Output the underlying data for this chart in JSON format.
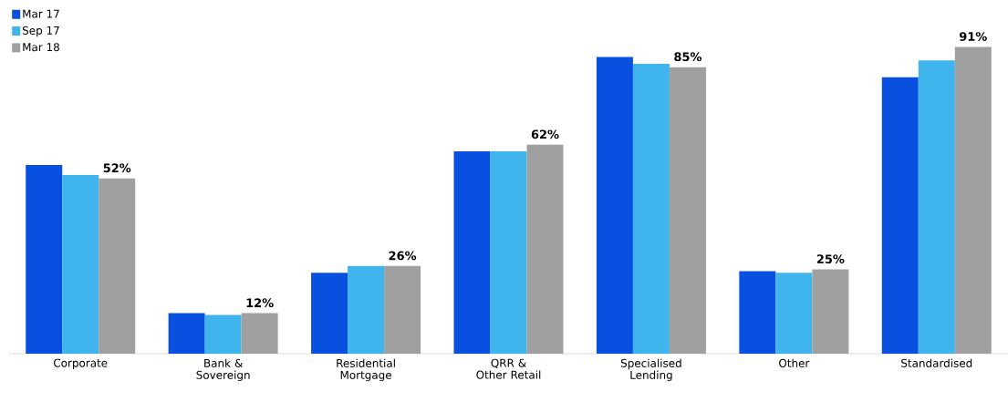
{
  "chart_data": {
    "type": "bar",
    "categories": [
      "Corporate",
      "Bank & Sovereign",
      "Residential Mortgage",
      "QRR & Other Retail",
      "Specialised Lending",
      "Other",
      "Standardised"
    ],
    "series": [
      {
        "name": "Mar 17",
        "color": "#0a50e0",
        "values": [
          56,
          12,
          24,
          60,
          88,
          24.5,
          82
        ]
      },
      {
        "name": "Sep 17",
        "color": "#40b4ec",
        "values": [
          53,
          11.5,
          26,
          60,
          86,
          24,
          87
        ]
      },
      {
        "name": "Mar 18",
        "color": "#a0a0a0",
        "values": [
          52,
          12,
          26,
          62,
          85,
          25,
          91
        ],
        "value_labels": [
          "52%",
          "12%",
          "26%",
          "62%",
          "85%",
          "25%",
          "91%"
        ]
      }
    ],
    "legend": "top left"
  }
}
